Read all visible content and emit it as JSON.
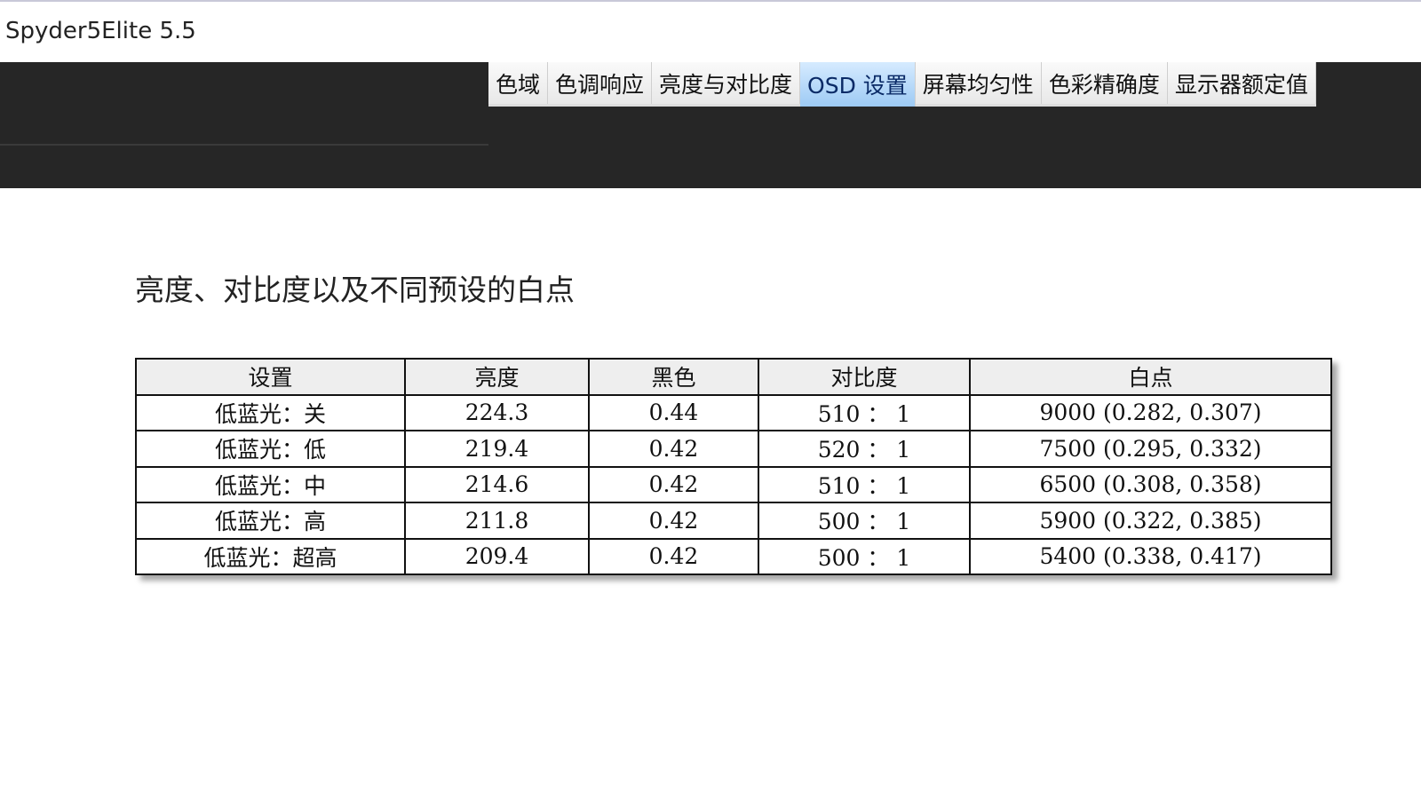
{
  "app": {
    "title": "Spyder5Elite 5.5"
  },
  "tabs": [
    {
      "label": "色域",
      "active": false
    },
    {
      "label": "色调响应",
      "active": false
    },
    {
      "label": "亮度与对比度",
      "active": false
    },
    {
      "label": "OSD 设置",
      "active": true
    },
    {
      "label": "屏幕均匀性",
      "active": false
    },
    {
      "label": "色彩精确度",
      "active": false
    },
    {
      "label": "显示器额定值",
      "active": false
    }
  ],
  "main": {
    "heading": "亮度、对比度以及不同预设的白点",
    "table": {
      "headers": [
        "设置",
        "亮度",
        "黑色",
        "对比度",
        "白点"
      ],
      "rows": [
        [
          "低蓝光：关",
          "224.3",
          "0.44",
          "510 ： 1",
          "9000 (0.282, 0.307)"
        ],
        [
          "低蓝光：低",
          "219.4",
          "0.42",
          "520 ： 1",
          "7500 (0.295, 0.332)"
        ],
        [
          "低蓝光：中",
          "214.6",
          "0.42",
          "510 ： 1",
          "6500 (0.308, 0.358)"
        ],
        [
          "低蓝光：高",
          "211.8",
          "0.42",
          "500 ： 1",
          "5900 (0.322, 0.385)"
        ],
        [
          "低蓝光：超高",
          "209.4",
          "0.42",
          "500 ： 1",
          "5400 (0.338, 0.417)"
        ]
      ]
    }
  }
}
